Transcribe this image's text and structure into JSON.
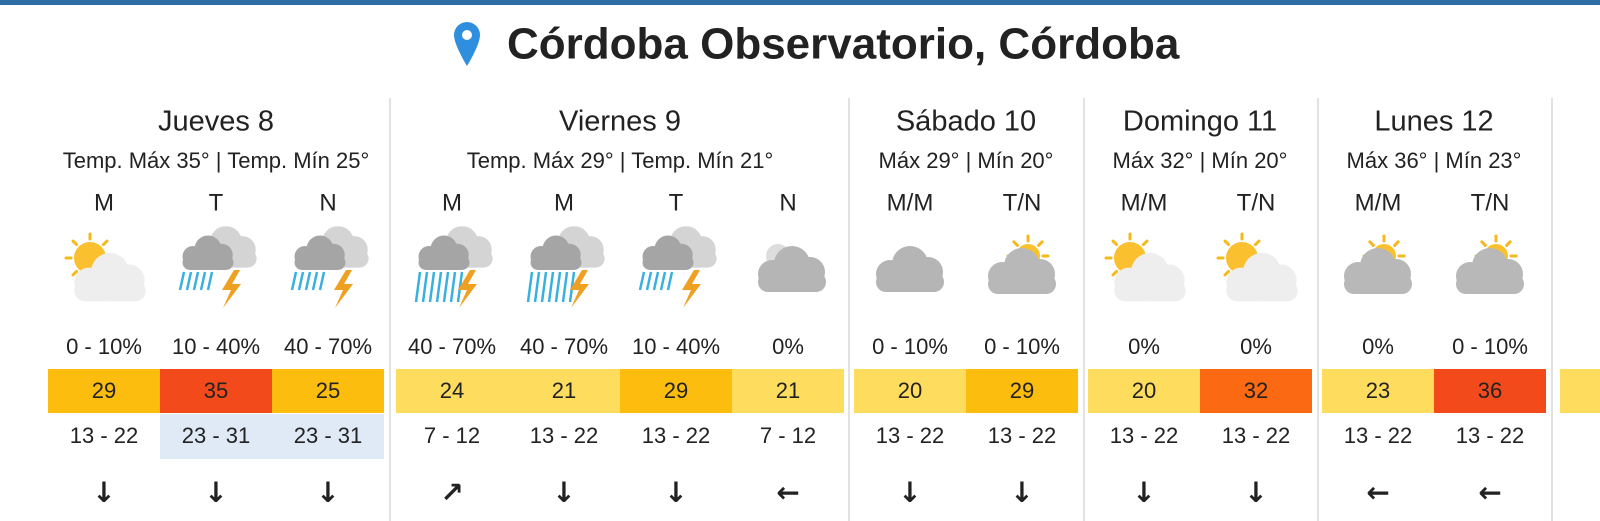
{
  "header": {
    "title": "Córdoba Observatorio, Córdoba"
  },
  "days": [
    {
      "name": "Jueves 8",
      "summary": "Temp. Máx 35° | Temp. Mín 25°",
      "periods": [
        {
          "label": "M",
          "rain": "0 - 10%",
          "temp": 29,
          "temp_color": "#fcbd0e",
          "wind": "13 - 22",
          "arrow": "↓"
        },
        {
          "label": "T",
          "rain": "10 - 40%",
          "temp": 35,
          "temp_color": "#f34a1c",
          "wind": "23 - 31",
          "wind_bg": "#dfeaf6",
          "arrow": "↓"
        },
        {
          "label": "N",
          "rain": "40 - 70%",
          "temp": 25,
          "temp_color": "#fcbd0e",
          "wind": "23 - 31",
          "wind_bg": "#dfeaf6",
          "arrow": "↓"
        }
      ]
    },
    {
      "name": "Viernes 9",
      "summary": "Temp. Máx 29° | Temp. Mín 21°",
      "periods": [
        {
          "label": "M",
          "rain": "40 - 70%",
          "temp": 24,
          "temp_color": "#fedc5e",
          "wind": "7 - 12",
          "arrow": "↗"
        },
        {
          "label": "M",
          "rain": "40 - 70%",
          "temp": 21,
          "temp_color": "#fedc5e",
          "wind": "13 - 22",
          "arrow": "↓"
        },
        {
          "label": "T",
          "rain": "10 - 40%",
          "temp": 29,
          "temp_color": "#fcbd0e",
          "wind": "13 - 22",
          "arrow": "↓"
        },
        {
          "label": "N",
          "rain": "0%",
          "temp": 21,
          "temp_color": "#fedc5e",
          "wind": "7 - 12",
          "arrow": "←"
        }
      ]
    },
    {
      "name": "Sábado 10",
      "summary": "Máx 29° | Mín 20°",
      "periods": [
        {
          "label": "M/M",
          "rain": "0 - 10%",
          "temp": 20,
          "temp_color": "#fedc5e",
          "wind": "13 - 22",
          "arrow": "↓"
        },
        {
          "label": "T/N",
          "rain": "0 - 10%",
          "temp": 29,
          "temp_color": "#fcbd0e",
          "wind": "13 - 22",
          "arrow": "↓"
        }
      ]
    },
    {
      "name": "Domingo 11",
      "summary": "Máx 32° | Mín 20°",
      "periods": [
        {
          "label": "M/M",
          "rain": "0%",
          "temp": 20,
          "temp_color": "#fedc5e",
          "wind": "13 - 22",
          "arrow": "↓"
        },
        {
          "label": "T/N",
          "rain": "0%",
          "temp": 32,
          "temp_color": "#fb6a12",
          "wind": "13 - 22",
          "arrow": "↓"
        }
      ]
    },
    {
      "name": "Lunes 12",
      "summary": "Máx 36° | Mín 23°",
      "periods": [
        {
          "label": "M/M",
          "rain": "0%",
          "temp": 23,
          "temp_color": "#fedc5e",
          "wind": "13 - 22",
          "arrow": "←"
        },
        {
          "label": "T/N",
          "rain": "0 - 10%",
          "temp": 36,
          "temp_color": "#f34a1c",
          "wind": "13 - 22",
          "arrow": "←"
        }
      ]
    }
  ]
}
